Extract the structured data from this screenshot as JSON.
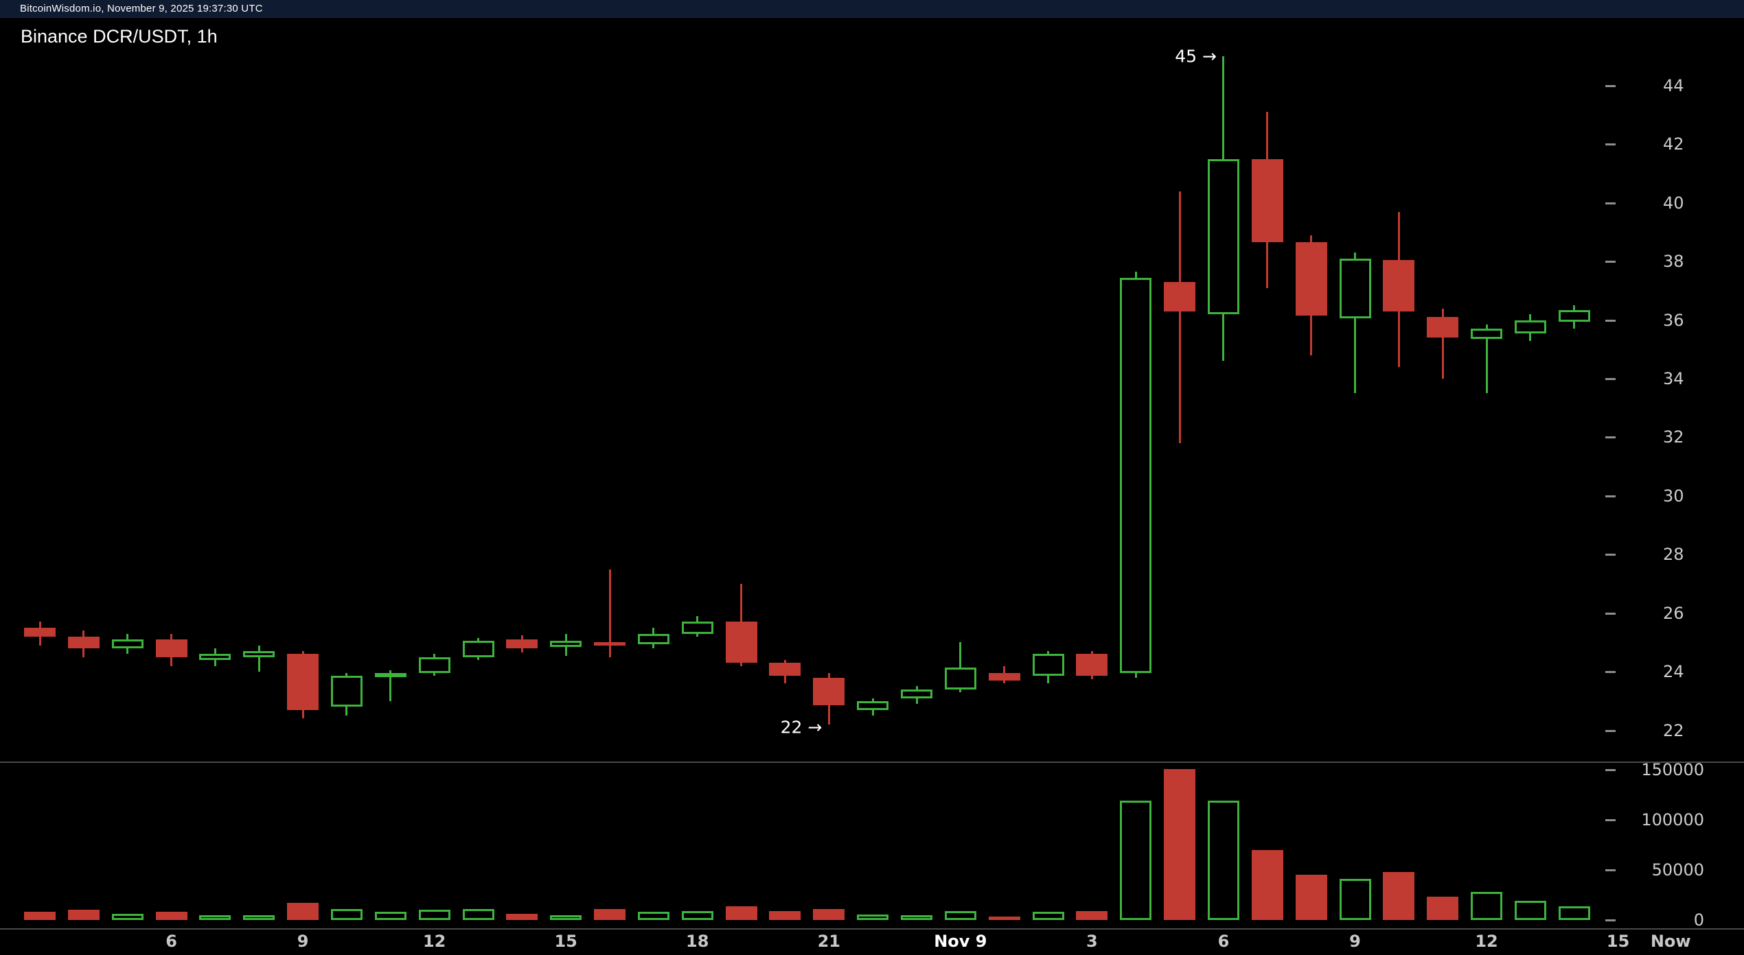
{
  "topbar": {
    "status": "BitcoinWisdom.io, November 9, 2025 19:37:30 UTC"
  },
  "chart": {
    "title": "Binance DCR/USDT, 1h"
  },
  "colors": {
    "up": "#3eb33e",
    "down": "#c23b32",
    "background": "#000000",
    "topbar_bg": "#0e1b31",
    "axis_text": "#cccccc",
    "time_text": "#c8c8c8",
    "bold_time_text": "#ffffff",
    "separator": "#4a4a4a",
    "tick_dash": "#8f8f8f",
    "annotation_text": "#ffffff"
  },
  "chart_data": {
    "type": "candlestick_with_volume",
    "title": "Binance DCR/USDT, 1h",
    "interval": "1h",
    "grid": false,
    "price_axis": {
      "min": 22,
      "max": 44,
      "ticks": [
        44,
        42,
        40,
        38,
        36,
        34,
        32,
        30,
        28,
        26,
        24,
        22
      ]
    },
    "volume_axis": {
      "min": 0,
      "max": 150000,
      "ticks": [
        150000,
        100000,
        50000,
        0
      ]
    },
    "time_labels": [
      {
        "label": "6",
        "slot": 3,
        "bold": false
      },
      {
        "label": "9",
        "slot": 6,
        "bold": false
      },
      {
        "label": "12",
        "slot": 9,
        "bold": false
      },
      {
        "label": "15",
        "slot": 12,
        "bold": false
      },
      {
        "label": "18",
        "slot": 15,
        "bold": false
      },
      {
        "label": "21",
        "slot": 18,
        "bold": false
      },
      {
        "label": "Nov 9",
        "slot": 21,
        "bold": true
      },
      {
        "label": "3",
        "slot": 24,
        "bold": false
      },
      {
        "label": "6",
        "slot": 27,
        "bold": false
      },
      {
        "label": "9",
        "slot": 30,
        "bold": false
      },
      {
        "label": "12",
        "slot": 33,
        "bold": false
      },
      {
        "label": "15",
        "slot": 36,
        "bold": false
      },
      {
        "label": "Now",
        "slot": 37.2,
        "bold": false
      }
    ],
    "annotations": [
      {
        "text": "45",
        "arrow": "→",
        "slot": 27,
        "price": 45.0
      },
      {
        "text": "22",
        "arrow": "→",
        "slot": 18,
        "price": 22.1
      }
    ],
    "candles_format": [
      "open",
      "high",
      "low",
      "close",
      "volume"
    ],
    "candles": [
      [
        25.5,
        25.7,
        24.9,
        25.2,
        8000
      ],
      [
        25.2,
        25.4,
        24.5,
        24.8,
        10000
      ],
      [
        24.8,
        25.3,
        24.6,
        25.1,
        6000
      ],
      [
        25.1,
        25.3,
        24.2,
        24.5,
        8000
      ],
      [
        24.4,
        24.8,
        24.2,
        24.6,
        4500
      ],
      [
        24.5,
        24.9,
        24.0,
        24.7,
        4500
      ],
      [
        24.6,
        24.7,
        22.4,
        22.7,
        17000
      ],
      [
        22.8,
        23.95,
        22.5,
        23.85,
        11000
      ],
      [
        23.85,
        24.05,
        23.0,
        23.95,
        8000
      ],
      [
        23.95,
        24.6,
        23.85,
        24.5,
        10000
      ],
      [
        24.5,
        25.15,
        24.4,
        25.05,
        11000
      ],
      [
        25.1,
        25.25,
        24.65,
        24.8,
        6000
      ],
      [
        24.85,
        25.3,
        24.55,
        25.05,
        4500
      ],
      [
        25.0,
        27.5,
        24.5,
        24.9,
        11000
      ],
      [
        24.95,
        25.5,
        24.8,
        25.3,
        8000
      ],
      [
        25.3,
        25.9,
        25.2,
        25.7,
        9000
      ],
      [
        25.7,
        27.0,
        24.2,
        24.3,
        13500
      ],
      [
        24.3,
        24.4,
        23.6,
        23.85,
        9000
      ],
      [
        23.8,
        23.95,
        22.2,
        22.85,
        11000
      ],
      [
        22.7,
        23.1,
        22.5,
        23.0,
        5500
      ],
      [
        23.1,
        23.5,
        22.9,
        23.4,
        4500
      ],
      [
        23.4,
        25.0,
        23.3,
        24.15,
        9000
      ],
      [
        23.95,
        24.2,
        23.6,
        23.7,
        3500
      ],
      [
        23.85,
        24.7,
        23.6,
        24.6,
        8000
      ],
      [
        24.6,
        24.7,
        23.75,
        23.85,
        9000
      ],
      [
        23.95,
        37.65,
        23.8,
        37.45,
        119000
      ],
      [
        37.3,
        40.4,
        31.8,
        36.3,
        151000
      ],
      [
        36.2,
        45.0,
        34.6,
        41.5,
        119000
      ],
      [
        41.5,
        43.1,
        37.1,
        38.65,
        70000
      ],
      [
        38.65,
        38.9,
        34.8,
        36.15,
        45000
      ],
      [
        36.05,
        38.3,
        33.5,
        38.1,
        41000
      ],
      [
        38.05,
        39.7,
        34.4,
        36.3,
        48000
      ],
      [
        36.1,
        36.4,
        34.0,
        35.4,
        23000
      ],
      [
        35.35,
        35.85,
        33.5,
        35.7,
        28000
      ],
      [
        35.55,
        36.2,
        35.3,
        36.0,
        19000
      ],
      [
        35.95,
        36.5,
        35.7,
        36.35,
        13500
      ]
    ]
  }
}
